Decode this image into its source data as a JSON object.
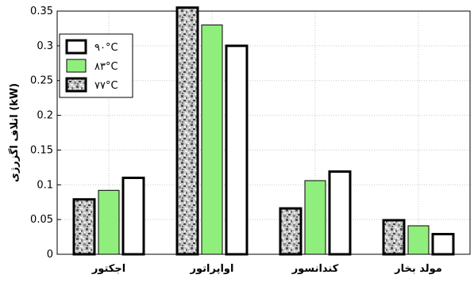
{
  "chart_data": {
    "type": "bar",
    "title": "",
    "xlabel": "",
    "ylabel": "اتلاف اگزرژی (kW)",
    "ylim": [
      0,
      0.35
    ],
    "yticks": [
      "0",
      "0.05",
      "0.1",
      "0.15",
      "0.2",
      "0.25",
      "0.3",
      "0.35"
    ],
    "grid": true,
    "legend_position": "top-left",
    "categories": [
      "اجکتور",
      "اواپراتور",
      "کندانسور",
      "مولد بخار"
    ],
    "series": [
      {
        "name": "۷۷°C",
        "values": [
          0.079,
          0.355,
          0.066,
          0.049
        ],
        "style": "texture",
        "color": "#9a9a9a"
      },
      {
        "name": "۸۳°C",
        "values": [
          0.092,
          0.33,
          0.106,
          0.041
        ],
        "style": "solid",
        "color": "#90ee7c"
      },
      {
        "name": "۹۰°C",
        "values": [
          0.11,
          0.3,
          0.119,
          0.029
        ],
        "style": "hollow",
        "color": "#ffffff"
      }
    ],
    "legend_order": [
      "۹۰°C",
      "۸۳°C",
      "۷۷°C"
    ]
  }
}
